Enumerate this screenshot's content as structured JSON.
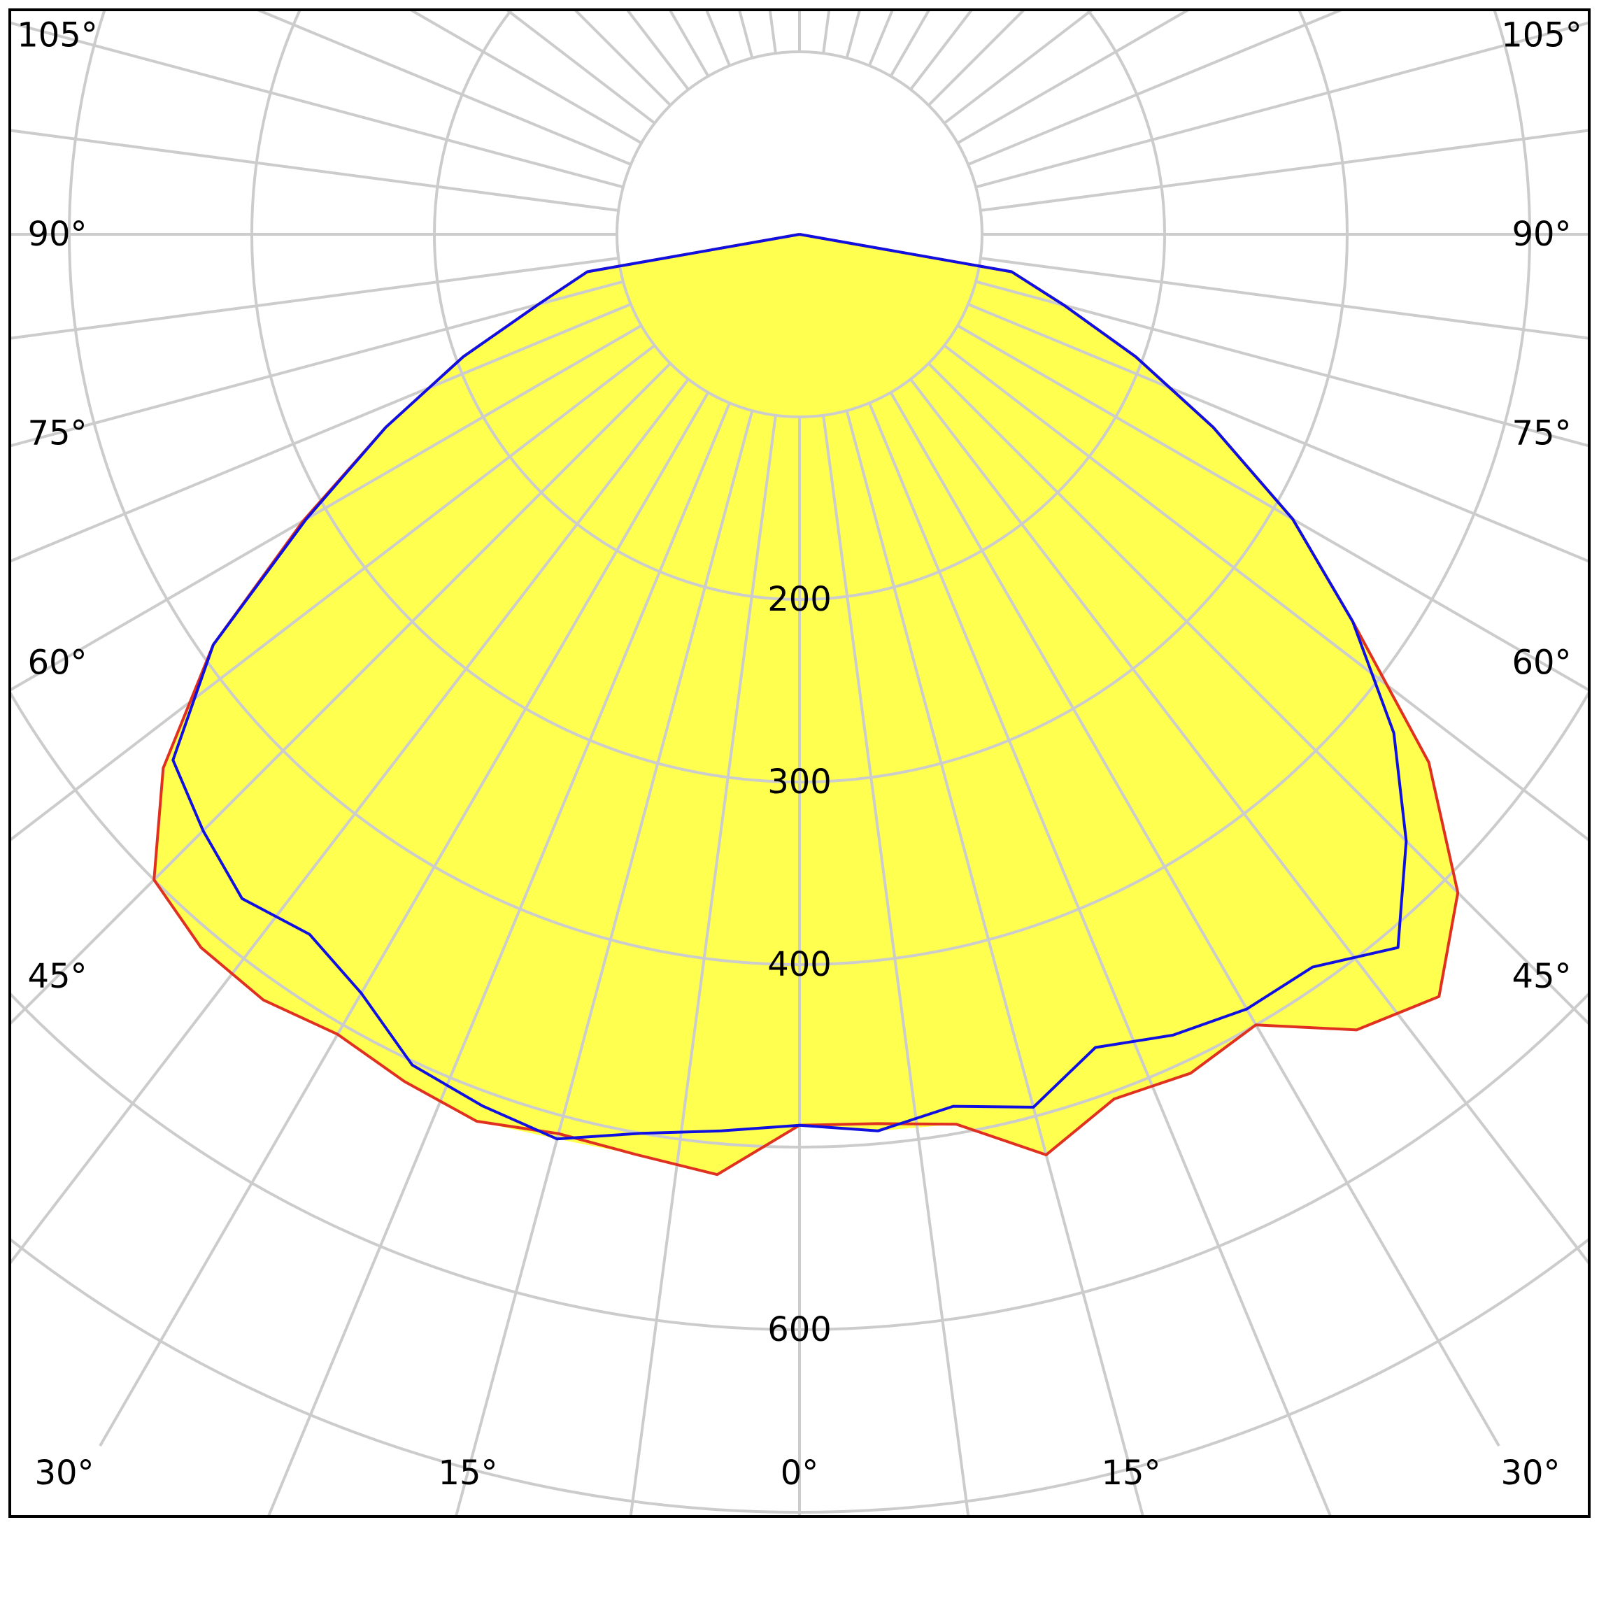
{
  "chart_data": {
    "type": "polar",
    "center_label_angles": [
      "0°",
      "15°",
      "30°",
      "45°",
      "60°",
      "75°",
      "90°",
      "105°"
    ],
    "radial_ticks": [
      {
        "value": 200,
        "label": "200"
      },
      {
        "value": 300,
        "label": "300"
      },
      {
        "value": 400,
        "label": "400"
      },
      {
        "value": 500,
        "label": ""
      },
      {
        "value": 600,
        "label": "600"
      },
      {
        "value": 700,
        "label": ""
      }
    ],
    "angle_labels": [
      {
        "angle": -30,
        "label": "30°"
      },
      {
        "angle": -15,
        "label": "15°"
      },
      {
        "angle": 0,
        "label": "0°"
      },
      {
        "angle": 15,
        "label": "15°"
      },
      {
        "angle": 30,
        "label": "30°"
      },
      {
        "angle": -45,
        "label": "45°"
      },
      {
        "angle": 45,
        "label": "45°"
      },
      {
        "angle": -60,
        "label": "60°"
      },
      {
        "angle": 60,
        "label": "60°"
      },
      {
        "angle": -75,
        "label": "75°"
      },
      {
        "angle": 75,
        "label": "75°"
      },
      {
        "angle": -90,
        "label": "90°"
      },
      {
        "angle": 90,
        "label": "90°"
      },
      {
        "angle": -105,
        "label": "105°"
      },
      {
        "angle": 105,
        "label": "105°"
      }
    ],
    "series": [
      {
        "color": "#e03020",
        "points": [
          [
            -90,
            0
          ],
          [
            -80,
            118
          ],
          [
            -75,
            148
          ],
          [
            -70,
            196
          ],
          [
            -65,
            250
          ],
          [
            -60,
            314
          ],
          [
            -55,
            392
          ],
          [
            -50,
            455
          ],
          [
            -45,
            500
          ],
          [
            -40,
            510
          ],
          [
            -35,
            512
          ],
          [
            -30,
            506
          ],
          [
            -25,
            512
          ],
          [
            -20,
            517
          ],
          [
            -15,
            510
          ],
          [
            -10,
            512
          ],
          [
            -5,
            517
          ],
          [
            0,
            488
          ],
          [
            5,
            489
          ],
          [
            10,
            495
          ],
          [
            15,
            522
          ],
          [
            20,
            504
          ],
          [
            25,
            507
          ],
          [
            30,
            500
          ],
          [
            35,
            532
          ],
          [
            40,
            545
          ],
          [
            45,
            510
          ],
          [
            50,
            450
          ],
          [
            55,
            370
          ],
          [
            60,
            312
          ],
          [
            65,
            250
          ],
          [
            70,
            196
          ],
          [
            75,
            150
          ],
          [
            80,
            118
          ],
          [
            90,
            0
          ]
        ]
      },
      {
        "color": "#1010e0",
        "points": [
          [
            -90,
            0
          ],
          [
            -80,
            118
          ],
          [
            -75,
            148
          ],
          [
            -70,
            196
          ],
          [
            -65,
            250
          ],
          [
            -60,
            312
          ],
          [
            -55,
            392
          ],
          [
            -50,
            448
          ],
          [
            -45,
            462
          ],
          [
            -40,
            475
          ],
          [
            -35,
            468
          ],
          [
            -30,
            480
          ],
          [
            -25,
            502
          ],
          [
            -20,
            508
          ],
          [
            -15,
            513
          ],
          [
            -10,
            500
          ],
          [
            -5,
            493
          ],
          [
            0,
            488
          ],
          [
            5,
            493
          ],
          [
            10,
            485
          ],
          [
            15,
            495
          ],
          [
            20,
            474
          ],
          [
            25,
            484
          ],
          [
            30,
            490
          ],
          [
            35,
            490
          ],
          [
            40,
            510
          ],
          [
            45,
            470
          ],
          [
            50,
            425
          ],
          [
            55,
            370
          ],
          [
            60,
            312
          ],
          [
            65,
            250
          ],
          [
            70,
            196
          ],
          [
            75,
            150
          ],
          [
            80,
            118
          ],
          [
            90,
            0
          ]
        ]
      }
    ]
  }
}
